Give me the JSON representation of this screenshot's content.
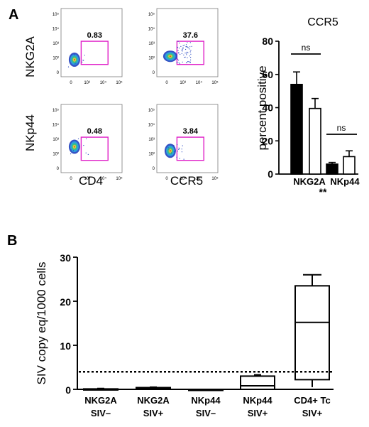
{
  "panels": {
    "a_label": "A",
    "b_label": "B"
  },
  "flow": {
    "row_labels": [
      "NKG2A",
      "NKp44"
    ],
    "col_labels": [
      "CD4",
      "CCR5"
    ],
    "y_ticks": [
      "10⁵",
      "10⁴",
      "10³",
      "10²",
      "0"
    ],
    "x_ticks": [
      "0",
      "10³",
      "10⁴",
      "10⁵"
    ],
    "percentages": [
      [
        "0.83",
        "37.6"
      ],
      [
        "0.48",
        "3.84"
      ]
    ],
    "gate_color": "#e020c8"
  },
  "chart_data": [
    {
      "type": "bar",
      "title": "CCR5",
      "ylabel": "percent positive",
      "xlabel": "",
      "ylim": [
        0,
        80
      ],
      "y_ticks": [
        0,
        20,
        40,
        60,
        80
      ],
      "categories": [
        "NKG2A",
        "NKp44"
      ],
      "series": [
        {
          "fill": "#000000",
          "values": [
            54,
            6
          ],
          "errors": [
            7.5,
            1
          ]
        },
        {
          "fill": "#ffffff",
          "values": [
            39.5,
            10.5
          ],
          "errors": [
            6,
            3.5
          ]
        }
      ],
      "annotations": {
        "ns_left": "ns",
        "ns_right": "ns",
        "between": "**"
      }
    },
    {
      "type": "box",
      "ylabel": "SIV copy eq/1000 cells",
      "xlabel": "",
      "ylim": [
        0,
        30
      ],
      "y_ticks": [
        0,
        10,
        20,
        30
      ],
      "categories": [
        [
          "NKG2A",
          "SIV–"
        ],
        [
          "NKG2A",
          "SIV+"
        ],
        [
          "NKp44",
          "SIV–"
        ],
        [
          "NKp44",
          "SIV+"
        ],
        [
          "CD4+ Tc",
          "SIV+"
        ]
      ],
      "boxes": [
        {
          "min": 0,
          "q1": 0,
          "median": 0,
          "q3": 0.1,
          "max": 0.2
        },
        {
          "min": 0.1,
          "q1": 0.2,
          "median": 0.3,
          "q3": 0.4,
          "max": 0.5
        },
        {
          "min": 0,
          "q1": 0,
          "median": 0,
          "q3": 0,
          "max": 0
        },
        {
          "min": 0,
          "q1": 0,
          "median": 0.8,
          "q3": 3.0,
          "max": 3.3
        },
        {
          "min": 0.5,
          "q1": 2.2,
          "median": 15.2,
          "q3": 23.5,
          "max": 26.0
        }
      ],
      "threshold": 4.0
    }
  ]
}
